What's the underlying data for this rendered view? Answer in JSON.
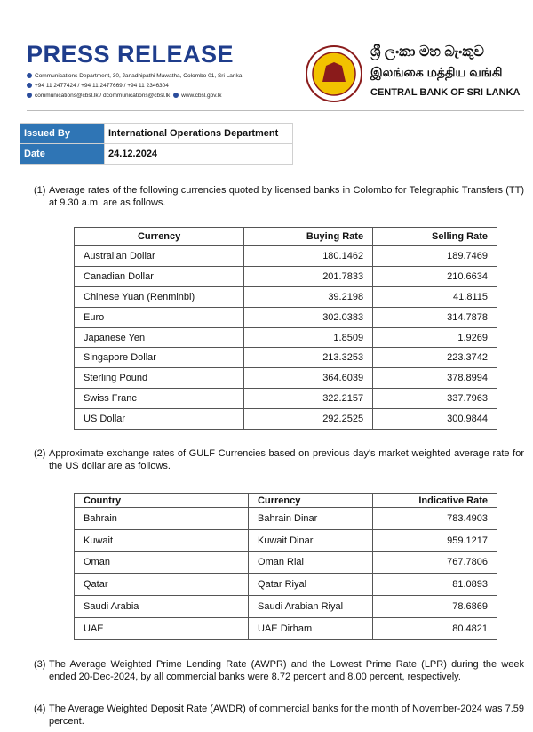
{
  "header": {
    "title": "PRESS RELEASE",
    "address": "Communications Department, 30, Janadhipathi Mawatha, Colombo 01, Sri Lanka",
    "phones": "+94 11 2477424 / +94 11 2477669 / +94 11 2346304",
    "emails": "communications@cbsl.lk / dcommunications@cbsl.lk",
    "website": "www.cbsl.gov.lk",
    "name_sinhala": "ශ්‍රී ලංකා මහ බැංකුව",
    "name_tamil": "இலங்கை மத்திய வங்கி",
    "name_english": "CENTRAL BANK OF SRI LANKA"
  },
  "info": {
    "rows": [
      [
        "Issued By",
        "International Operations Department"
      ],
      [
        "Date",
        "24.12.2024"
      ]
    ]
  },
  "paragraphs": [
    {
      "number": "(1)",
      "text": "Average rates of the following currencies quoted by licensed banks in Colombo for Telegraphic Transfers (TT) at 9.30 a.m. are as follows."
    },
    {
      "number": "(2)",
      "text": "Approximate exchange rates of GULF Currencies based on previous day's market weighted average rate for the US dollar are as follows."
    },
    {
      "number": "(3)",
      "text": "The Average Weighted Prime Lending Rate (AWPR) and the Lowest Prime Rate (LPR) during the week ended 20-Dec-2024, by all commercial banks were 8.72 percent and 8.00 percent, respectively."
    },
    {
      "number": "(4)",
      "text": "The Average Weighted Deposit Rate (AWDR) of commercial banks for the month of November-2024 was 7.59 percent."
    }
  ],
  "table1": {
    "headers": [
      "Currency",
      "Buying Rate",
      "Selling Rate"
    ],
    "rows": [
      [
        "Australian Dollar",
        "180.1462",
        "189.7469"
      ],
      [
        "Canadian Dollar",
        "201.7833",
        "210.6634"
      ],
      [
        "Chinese Yuan (Renminbi)",
        "39.2198",
        "41.8115"
      ],
      [
        "Euro",
        "302.0383",
        "314.7878"
      ],
      [
        "Japanese Yen",
        "1.8509",
        "1.9269"
      ],
      [
        "Singapore Dollar",
        "213.3253",
        "223.3742"
      ],
      [
        "Sterling Pound",
        "364.6039",
        "378.8994"
      ],
      [
        "Swiss Franc",
        "322.2157",
        "337.7963"
      ],
      [
        "US Dollar",
        "292.2525",
        "300.9844"
      ]
    ]
  },
  "table2": {
    "headers": [
      "Country",
      "Currency",
      "Indicative Rate"
    ],
    "rows": [
      [
        "Bahrain",
        "Bahrain Dinar",
        "783.4903"
      ],
      [
        "Kuwait",
        "Kuwait Dinar",
        "959.1217"
      ],
      [
        "Oman",
        "Oman Rial",
        "767.7806"
      ],
      [
        "Qatar",
        "Qatar Riyal",
        "81.0893"
      ],
      [
        "Saudi Arabia",
        "Saudi Arabian Riyal",
        "78.6869"
      ],
      [
        "UAE",
        "UAE Dirham",
        "80.4821"
      ]
    ]
  }
}
